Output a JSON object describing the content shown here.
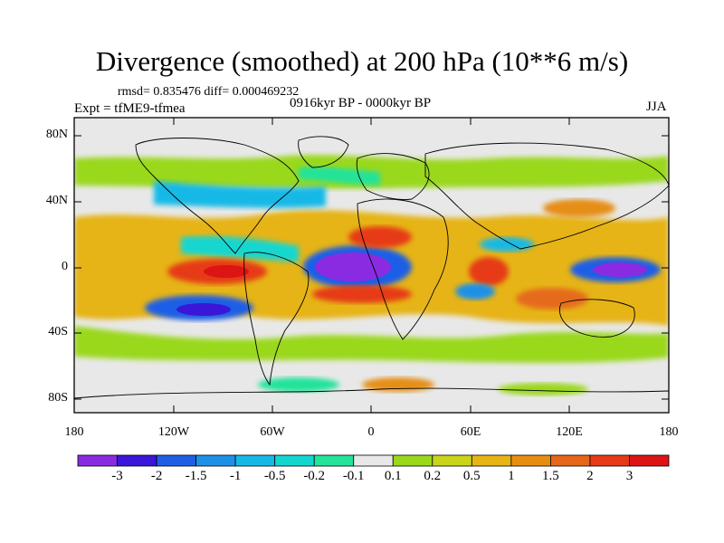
{
  "title": "Divergence (smoothed) at 200 hPa (10**6 m/s)",
  "stats": "rmsd= 0.835476 diff= 0.000469232",
  "experiment": "Expt = tfME9-tfmea",
  "period": "0916kyr BP - 0000kyr BP",
  "season": "JJA",
  "axes": {
    "lat_labels": [
      "80N",
      "40N",
      "0",
      "40S",
      "80S"
    ],
    "lon_labels": [
      "180",
      "120W",
      "60W",
      "0",
      "60E",
      "120E",
      "180"
    ]
  },
  "colorbar": {
    "labels": [
      "-3",
      "-2",
      "-1.5",
      "-1",
      "-0.5",
      "-0.2",
      "-0.1",
      "0.1",
      "0.2",
      "0.5",
      "1",
      "1.5",
      "2",
      "3"
    ],
    "colors": [
      "#8a2be2",
      "#3a17d8",
      "#1e5fe6",
      "#1e90e8",
      "#16b9e6",
      "#14d6d0",
      "#24e39a",
      "#e8e8e8",
      "#9ad81c",
      "#c9d41a",
      "#e6b414",
      "#e68e12",
      "#e6661a",
      "#e63a18",
      "#dc1414"
    ]
  },
  "colors": {
    "neutral": "#e8e8e8",
    "land_outline": "#000000"
  }
}
